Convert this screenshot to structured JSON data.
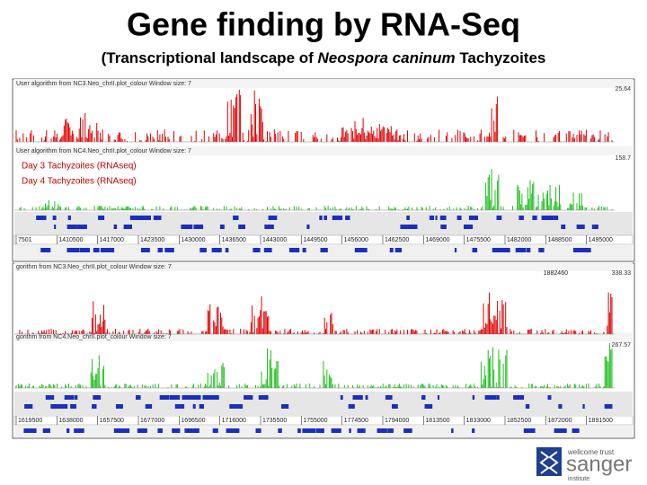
{
  "header": {
    "title": "Gene finding by RNA-Seq",
    "subtitle": {
      "before": "(Transcriptional landscape of",
      "species": "Neospora caninum",
      "after": "Tachyzoites"
    }
  },
  "panels": [
    {
      "tracks": [
        {
          "caption": "User algorithm from NC3.Neo_chrII.plot_colour  Window size: 7",
          "max": "25.64"
        },
        {
          "caption": "User algorithm from NC4.Neo_chrII.plot_colour  Window size: 7",
          "max": "158.7"
        }
      ],
      "legend": [
        "Day 3 Tachyzoites (RNAseq)",
        "Day 4 Tachyzoites (RNAseq)"
      ],
      "coordinates": [
        "7501",
        "1410500",
        "1417000",
        "1423500",
        "1430000",
        "1436500",
        "1443000",
        "1449500",
        "1456000",
        "1462500",
        "1469000",
        "1475500",
        "1482000",
        "1488500",
        "1495000"
      ]
    },
    {
      "tracks": [
        {
          "caption": "gorithm from NC3.Neo_chrII.plot_colour  Window size: 7",
          "max": "338.33"
        },
        {
          "caption": "gorithm from NC4.Neo_chrII.plot_colour  Window size: 7",
          "max": "267.57"
        }
      ],
      "position": "1882460",
      "coordinates": [
        "1619500",
        "1638000",
        "1657500",
        "1677000",
        "1696500",
        "1716000",
        "1735500",
        "1755000",
        "1774500",
        "1794000",
        "1813500",
        "1833000",
        "1852500",
        "1872000",
        "1891500"
      ]
    }
  ],
  "logo": {
    "line1": "wellcome trust",
    "line2": "sanger",
    "line3": "institute"
  }
}
